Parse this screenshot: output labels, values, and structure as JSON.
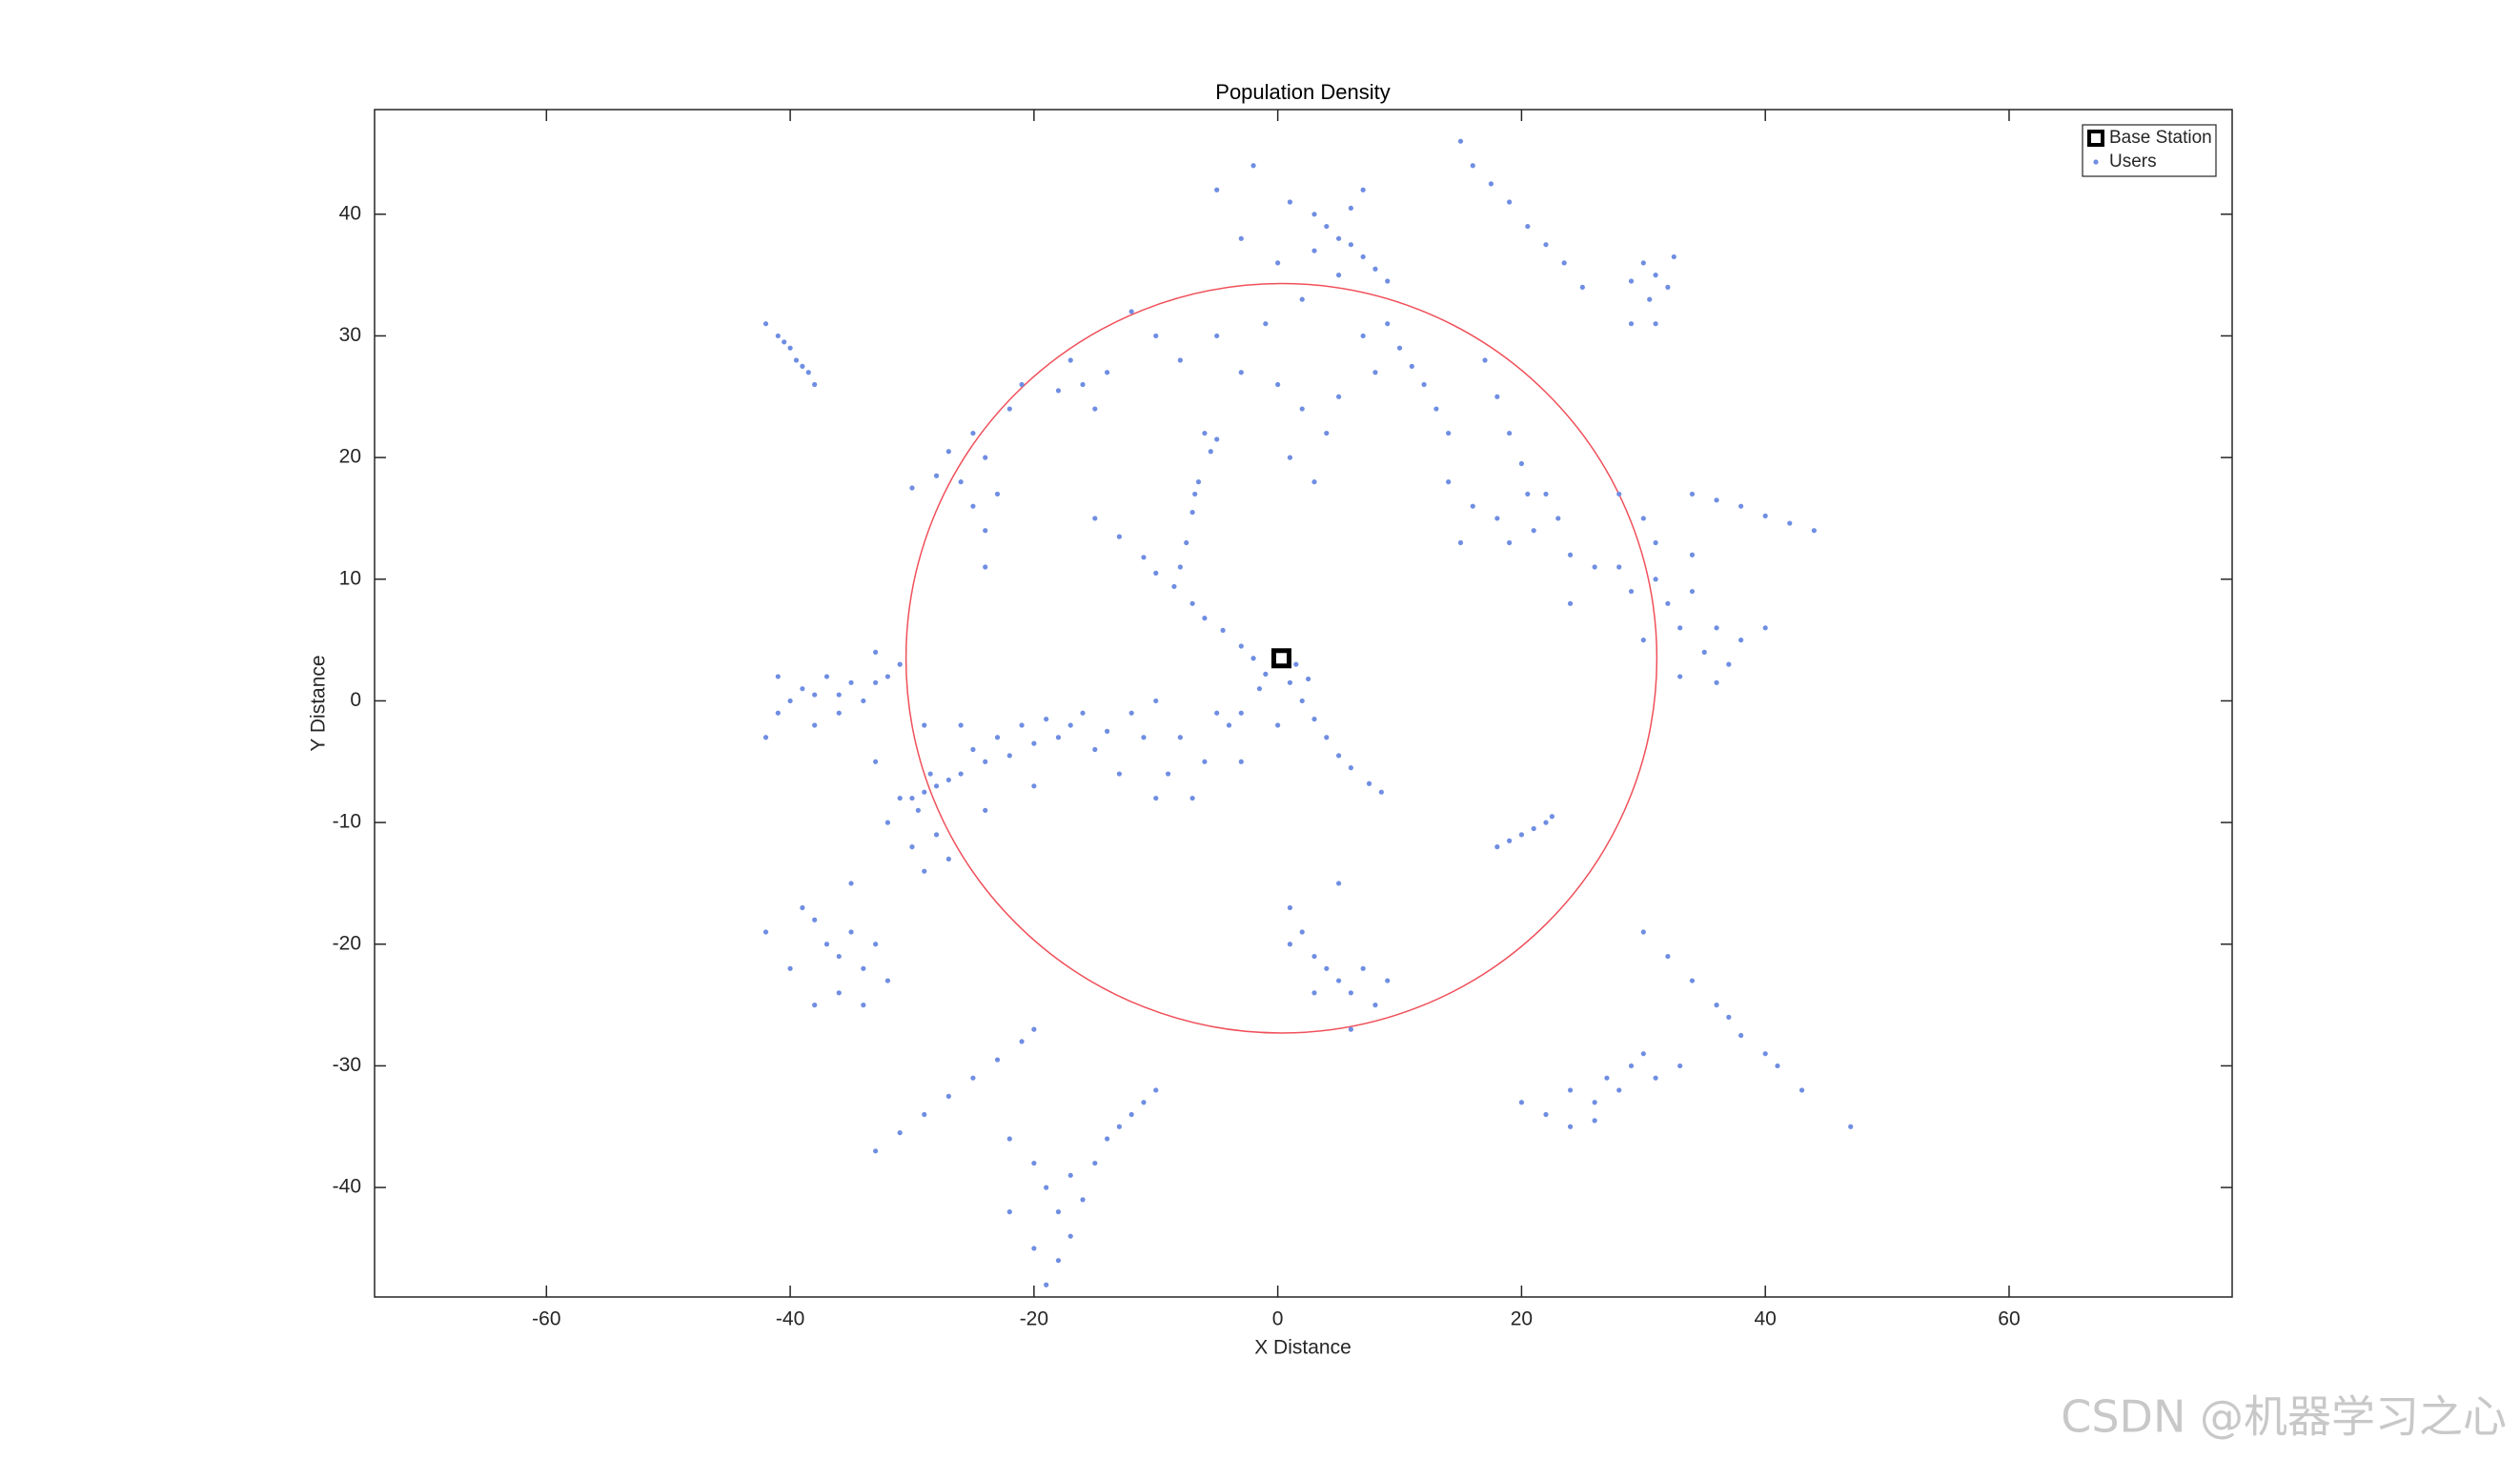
{
  "chart_data": {
    "type": "scatter",
    "title": "Population Density",
    "x_label": "X Distance",
    "y_label": "Y Distance",
    "xlim": [
      -74.1,
      78.3
    ],
    "ylim": [
      -49.0,
      48.6
    ],
    "xticks": [
      -60,
      -40,
      -20,
      0,
      20,
      40,
      60
    ],
    "yticks": [
      -40,
      -30,
      -20,
      -10,
      0,
      10,
      20,
      30,
      40
    ],
    "legend": "upper right",
    "coverage": {
      "center_x": 0.3,
      "center_y": 3.5,
      "radius": 30.8,
      "color": "#f0505a"
    },
    "series": [
      {
        "name": "Base Station",
        "color": "#000000",
        "marker": "square",
        "x": [
          0.3
        ],
        "values": [
          3.5
        ]
      },
      {
        "name": "Users",
        "color": "#6f8ee2",
        "marker": "dot",
        "x": [
          -15,
          -13,
          -11,
          -10,
          -8.5,
          -7,
          -6,
          -4.5,
          -3,
          -2,
          -1,
          1,
          2,
          3,
          4,
          5,
          6,
          7.5,
          8.5,
          -1.5,
          1.5,
          -3,
          0,
          2.5,
          -6,
          -5.5,
          -6.5,
          -7,
          -7.5,
          -8,
          -5,
          -6.8,
          -5,
          -2,
          1,
          3,
          4,
          5,
          6,
          7,
          8,
          9,
          3,
          5,
          2,
          7,
          6,
          -3,
          0,
          -10,
          -8,
          -5,
          -12,
          -3,
          0,
          2,
          4,
          1,
          3,
          5,
          8,
          10,
          11,
          12,
          13,
          14,
          7,
          9,
          -1,
          -14,
          -17,
          -16,
          -18,
          -15,
          -25,
          -24,
          -26,
          -28,
          -30,
          -23,
          -24,
          -24,
          -22,
          -21,
          -27,
          -25,
          17,
          18,
          19,
          20,
          20.5,
          18,
          16,
          19,
          21,
          23,
          24,
          22,
          14,
          15,
          -42,
          -41,
          -40.5,
          -40,
          -39.5,
          -39,
          -38.5,
          -38,
          15,
          16,
          17.5,
          19,
          20.5,
          22,
          23.5,
          25,
          30,
          31,
          32,
          30.5,
          29,
          32.5,
          31,
          29,
          34,
          36,
          38,
          40,
          42,
          44,
          28,
          30,
          28,
          29,
          31,
          32,
          33,
          34,
          35,
          36,
          37,
          38,
          36,
          33,
          34,
          30,
          31,
          40,
          26,
          24,
          -42,
          -41,
          -40,
          -39,
          -38,
          -37,
          -36,
          -35,
          -34,
          -33,
          -32,
          -31,
          -33,
          -41,
          -38,
          -36,
          -30,
          -29,
          -28,
          -28.5,
          -27,
          -26,
          -29.5,
          -31,
          -32,
          -30,
          -28,
          -29,
          -33,
          -25,
          -24,
          -23,
          -22,
          -21,
          -20,
          -19,
          -18,
          -17,
          -16,
          -15,
          -14,
          -12,
          -10,
          -11,
          -13,
          -20,
          -24,
          -27,
          -26,
          -29,
          -8,
          -6,
          -9,
          -4,
          -7,
          -5,
          -3,
          -10,
          -42,
          -40,
          -38,
          -37,
          -36,
          -35,
          -34,
          -36,
          -34,
          -33,
          -39,
          -32,
          -38,
          -35,
          -33,
          -31,
          -29,
          -27,
          -25,
          -23,
          -21,
          -20,
          -22,
          -20,
          -19,
          -18,
          -17,
          -16,
          -15,
          -14,
          -13,
          -12,
          -11,
          -20,
          -18,
          -22,
          -17,
          -10,
          -19,
          1,
          2,
          3,
          4,
          5,
          6,
          7,
          8,
          3,
          1,
          5,
          6,
          9,
          18,
          19,
          20,
          21,
          22,
          22.5,
          30,
          32,
          34,
          36,
          37,
          38,
          40,
          41,
          43,
          47,
          20,
          22,
          24,
          26,
          27,
          28,
          29,
          30,
          31,
          26,
          33,
          24
        ],
        "values": [
          15,
          13.5,
          11.8,
          10.5,
          9.4,
          8,
          6.8,
          5.8,
          4.5,
          3.5,
          2.2,
          1.5,
          0,
          -1.5,
          -3,
          -4.5,
          -5.5,
          -6.8,
          -7.5,
          1,
          3,
          -1,
          -2,
          1.8,
          22,
          20.5,
          18,
          15.5,
          13,
          11,
          21.5,
          17,
          42,
          44,
          41,
          40,
          39,
          38,
          37.5,
          36.5,
          35.5,
          34.5,
          37,
          35,
          33,
          42,
          40.5,
          38,
          36,
          30,
          28,
          30,
          32,
          27,
          26,
          24,
          22,
          20,
          18,
          25,
          27,
          29,
          27.5,
          26,
          24,
          22,
          30,
          31,
          31,
          27,
          28,
          26,
          25.5,
          24,
          22,
          20,
          18,
          18.5,
          17.5,
          17,
          14,
          11,
          24,
          26,
          20.5,
          16,
          28,
          25,
          22,
          19.5,
          17,
          15,
          16,
          13,
          14,
          15,
          12,
          17,
          18,
          13,
          31,
          30,
          29.5,
          29,
          28,
          27.5,
          27,
          26,
          46,
          44,
          42.5,
          41,
          39,
          37.5,
          36,
          34,
          36,
          35,
          34,
          33,
          34.5,
          36.5,
          31,
          31,
          17,
          16.5,
          16,
          15.2,
          14.6,
          14,
          17,
          15,
          11,
          9,
          10,
          8,
          6,
          9,
          4,
          6,
          3,
          5,
          1.5,
          2,
          12,
          5,
          13,
          6,
          11,
          8,
          -3,
          -1,
          0,
          1,
          0.5,
          2,
          0.5,
          1.5,
          0,
          1.5,
          2,
          3,
          4,
          2,
          -2,
          -1,
          -8,
          -7.5,
          -7,
          -6,
          -6.5,
          -6,
          -9,
          -8,
          -10,
          -12,
          -11,
          -14,
          -5,
          -4,
          -5,
          -3,
          -4.5,
          -2,
          -3.5,
          -1.5,
          -3,
          -2,
          -1,
          -4,
          -2.5,
          -1,
          0,
          -3,
          -6,
          -7,
          -9,
          -13,
          -2,
          -2,
          -3,
          -5,
          -6,
          -2,
          -8,
          -1,
          -5,
          -8,
          -19,
          -22,
          -18,
          -20,
          -21,
          -19,
          -22,
          -24,
          -25,
          -20,
          -17,
          -23,
          -25,
          -15,
          -37,
          -35.5,
          -34,
          -32.5,
          -31,
          -29.5,
          -28,
          -27,
          -36,
          -38,
          -40,
          -42,
          -39,
          -41,
          -38,
          -36,
          -35,
          -34,
          -33,
          -45,
          -46,
          -42,
          -44,
          -32,
          -48,
          -17,
          -19,
          -21,
          -22,
          -23,
          -24,
          -22,
          -25,
          -24,
          -20,
          -15,
          -27,
          -23,
          -12,
          -11.5,
          -11,
          -10.5,
          -10,
          -9.5,
          -19,
          -21,
          -23,
          -25,
          -26,
          -27.5,
          -29,
          -30,
          -32,
          -35,
          -33,
          -34,
          -32,
          -33,
          -31,
          -32,
          -30,
          -29,
          -31,
          -34.5,
          -30,
          -35
        ]
      }
    ]
  },
  "watermark": "CSDN @机器学习之心"
}
